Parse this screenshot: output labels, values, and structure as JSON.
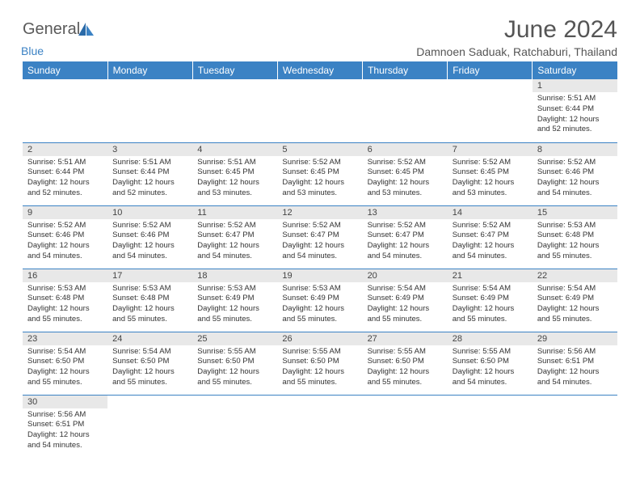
{
  "brand": {
    "name1": "General",
    "name2": "Blue"
  },
  "title": "June 2024",
  "location": "Damnoen Saduak, Ratchaburi, Thailand",
  "colors": {
    "header_bg": "#3b82c4",
    "header_text": "#ffffff",
    "daynum_bg": "#e8e8e8",
    "text": "#333333",
    "title_text": "#555555",
    "row_border": "#3b82c4"
  },
  "weekdays": [
    "Sunday",
    "Monday",
    "Tuesday",
    "Wednesday",
    "Thursday",
    "Friday",
    "Saturday"
  ],
  "weeks": [
    [
      {
        "n": "",
        "sr": "",
        "ss": "",
        "dl": ""
      },
      {
        "n": "",
        "sr": "",
        "ss": "",
        "dl": ""
      },
      {
        "n": "",
        "sr": "",
        "ss": "",
        "dl": ""
      },
      {
        "n": "",
        "sr": "",
        "ss": "",
        "dl": ""
      },
      {
        "n": "",
        "sr": "",
        "ss": "",
        "dl": ""
      },
      {
        "n": "",
        "sr": "",
        "ss": "",
        "dl": ""
      },
      {
        "n": "1",
        "sr": "Sunrise: 5:51 AM",
        "ss": "Sunset: 6:44 PM",
        "dl": "Daylight: 12 hours and 52 minutes."
      }
    ],
    [
      {
        "n": "2",
        "sr": "Sunrise: 5:51 AM",
        "ss": "Sunset: 6:44 PM",
        "dl": "Daylight: 12 hours and 52 minutes."
      },
      {
        "n": "3",
        "sr": "Sunrise: 5:51 AM",
        "ss": "Sunset: 6:44 PM",
        "dl": "Daylight: 12 hours and 52 minutes."
      },
      {
        "n": "4",
        "sr": "Sunrise: 5:51 AM",
        "ss": "Sunset: 6:45 PM",
        "dl": "Daylight: 12 hours and 53 minutes."
      },
      {
        "n": "5",
        "sr": "Sunrise: 5:52 AM",
        "ss": "Sunset: 6:45 PM",
        "dl": "Daylight: 12 hours and 53 minutes."
      },
      {
        "n": "6",
        "sr": "Sunrise: 5:52 AM",
        "ss": "Sunset: 6:45 PM",
        "dl": "Daylight: 12 hours and 53 minutes."
      },
      {
        "n": "7",
        "sr": "Sunrise: 5:52 AM",
        "ss": "Sunset: 6:45 PM",
        "dl": "Daylight: 12 hours and 53 minutes."
      },
      {
        "n": "8",
        "sr": "Sunrise: 5:52 AM",
        "ss": "Sunset: 6:46 PM",
        "dl": "Daylight: 12 hours and 54 minutes."
      }
    ],
    [
      {
        "n": "9",
        "sr": "Sunrise: 5:52 AM",
        "ss": "Sunset: 6:46 PM",
        "dl": "Daylight: 12 hours and 54 minutes."
      },
      {
        "n": "10",
        "sr": "Sunrise: 5:52 AM",
        "ss": "Sunset: 6:46 PM",
        "dl": "Daylight: 12 hours and 54 minutes."
      },
      {
        "n": "11",
        "sr": "Sunrise: 5:52 AM",
        "ss": "Sunset: 6:47 PM",
        "dl": "Daylight: 12 hours and 54 minutes."
      },
      {
        "n": "12",
        "sr": "Sunrise: 5:52 AM",
        "ss": "Sunset: 6:47 PM",
        "dl": "Daylight: 12 hours and 54 minutes."
      },
      {
        "n": "13",
        "sr": "Sunrise: 5:52 AM",
        "ss": "Sunset: 6:47 PM",
        "dl": "Daylight: 12 hours and 54 minutes."
      },
      {
        "n": "14",
        "sr": "Sunrise: 5:52 AM",
        "ss": "Sunset: 6:47 PM",
        "dl": "Daylight: 12 hours and 54 minutes."
      },
      {
        "n": "15",
        "sr": "Sunrise: 5:53 AM",
        "ss": "Sunset: 6:48 PM",
        "dl": "Daylight: 12 hours and 55 minutes."
      }
    ],
    [
      {
        "n": "16",
        "sr": "Sunrise: 5:53 AM",
        "ss": "Sunset: 6:48 PM",
        "dl": "Daylight: 12 hours and 55 minutes."
      },
      {
        "n": "17",
        "sr": "Sunrise: 5:53 AM",
        "ss": "Sunset: 6:48 PM",
        "dl": "Daylight: 12 hours and 55 minutes."
      },
      {
        "n": "18",
        "sr": "Sunrise: 5:53 AM",
        "ss": "Sunset: 6:49 PM",
        "dl": "Daylight: 12 hours and 55 minutes."
      },
      {
        "n": "19",
        "sr": "Sunrise: 5:53 AM",
        "ss": "Sunset: 6:49 PM",
        "dl": "Daylight: 12 hours and 55 minutes."
      },
      {
        "n": "20",
        "sr": "Sunrise: 5:54 AM",
        "ss": "Sunset: 6:49 PM",
        "dl": "Daylight: 12 hours and 55 minutes."
      },
      {
        "n": "21",
        "sr": "Sunrise: 5:54 AM",
        "ss": "Sunset: 6:49 PM",
        "dl": "Daylight: 12 hours and 55 minutes."
      },
      {
        "n": "22",
        "sr": "Sunrise: 5:54 AM",
        "ss": "Sunset: 6:49 PM",
        "dl": "Daylight: 12 hours and 55 minutes."
      }
    ],
    [
      {
        "n": "23",
        "sr": "Sunrise: 5:54 AM",
        "ss": "Sunset: 6:50 PM",
        "dl": "Daylight: 12 hours and 55 minutes."
      },
      {
        "n": "24",
        "sr": "Sunrise: 5:54 AM",
        "ss": "Sunset: 6:50 PM",
        "dl": "Daylight: 12 hours and 55 minutes."
      },
      {
        "n": "25",
        "sr": "Sunrise: 5:55 AM",
        "ss": "Sunset: 6:50 PM",
        "dl": "Daylight: 12 hours and 55 minutes."
      },
      {
        "n": "26",
        "sr": "Sunrise: 5:55 AM",
        "ss": "Sunset: 6:50 PM",
        "dl": "Daylight: 12 hours and 55 minutes."
      },
      {
        "n": "27",
        "sr": "Sunrise: 5:55 AM",
        "ss": "Sunset: 6:50 PM",
        "dl": "Daylight: 12 hours and 55 minutes."
      },
      {
        "n": "28",
        "sr": "Sunrise: 5:55 AM",
        "ss": "Sunset: 6:50 PM",
        "dl": "Daylight: 12 hours and 54 minutes."
      },
      {
        "n": "29",
        "sr": "Sunrise: 5:56 AM",
        "ss": "Sunset: 6:51 PM",
        "dl": "Daylight: 12 hours and 54 minutes."
      }
    ],
    [
      {
        "n": "30",
        "sr": "Sunrise: 5:56 AM",
        "ss": "Sunset: 6:51 PM",
        "dl": "Daylight: 12 hours and 54 minutes."
      },
      {
        "n": "",
        "sr": "",
        "ss": "",
        "dl": ""
      },
      {
        "n": "",
        "sr": "",
        "ss": "",
        "dl": ""
      },
      {
        "n": "",
        "sr": "",
        "ss": "",
        "dl": ""
      },
      {
        "n": "",
        "sr": "",
        "ss": "",
        "dl": ""
      },
      {
        "n": "",
        "sr": "",
        "ss": "",
        "dl": ""
      },
      {
        "n": "",
        "sr": "",
        "ss": "",
        "dl": ""
      }
    ]
  ]
}
